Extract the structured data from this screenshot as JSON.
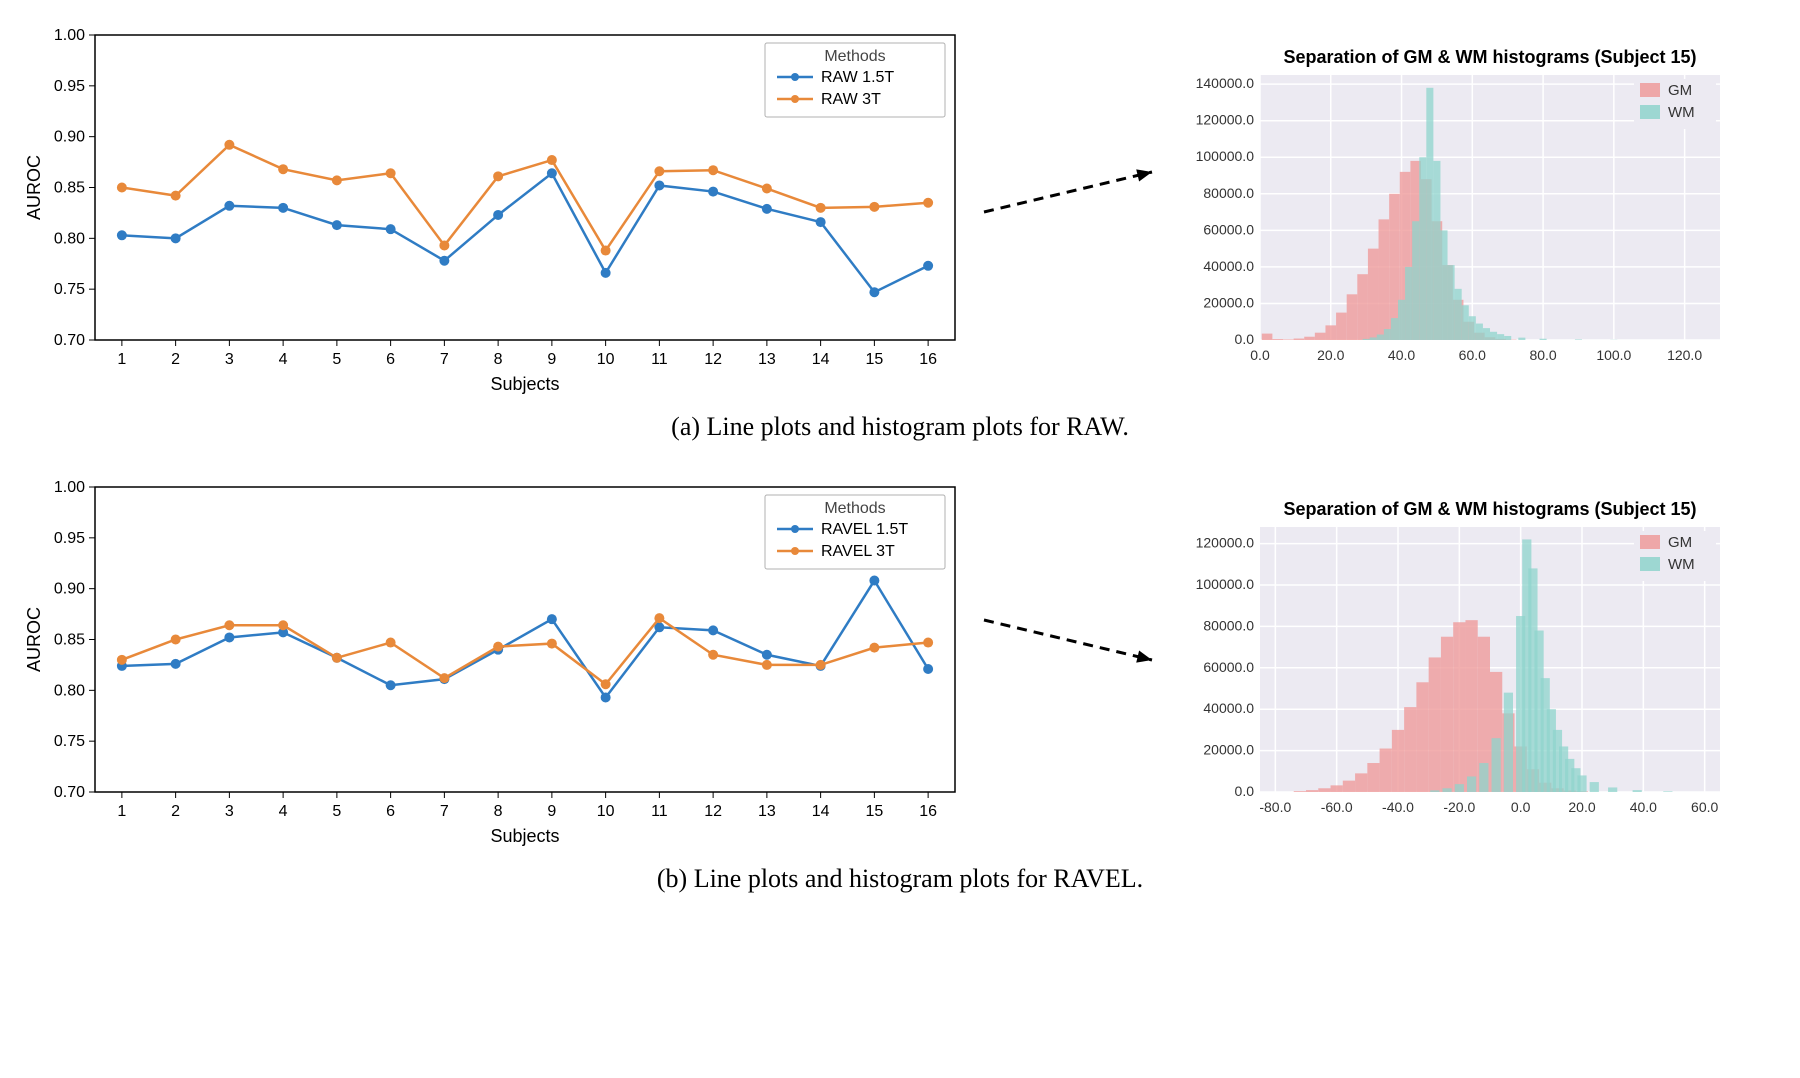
{
  "colors": {
    "series_blue": "#2f7cc4",
    "series_orange": "#e8893a",
    "gm_fill": "#ef9b9b",
    "wm_fill": "#8fd4cc",
    "hist_bg": "#eceaf2",
    "hist_grid": "#ffffff",
    "text": "#000000",
    "arrow": "#000000"
  },
  "panel_a": {
    "caption": "(a) Line plots and histogram plots for RAW.",
    "lineplot": {
      "type": "line",
      "xlabel": "Subjects",
      "ylabel": "AUROC",
      "xlim": [
        0.5,
        16.5
      ],
      "ylim": [
        0.7,
        1.0
      ],
      "xtick_step": 1,
      "ytick_step": 0.05,
      "legend_title": "Methods",
      "series": [
        {
          "name": "RAW 1.5T",
          "color": "#2f7cc4",
          "marker": "circle",
          "marker_size": 5,
          "line_width": 2.5,
          "values": [
            0.803,
            0.8,
            0.832,
            0.83,
            0.813,
            0.809,
            0.778,
            0.823,
            0.864,
            0.766,
            0.852,
            0.846,
            0.829,
            0.816,
            0.747,
            0.773
          ]
        },
        {
          "name": "RAW 3T",
          "color": "#e8893a",
          "marker": "circle",
          "marker_size": 5,
          "line_width": 2.5,
          "values": [
            0.85,
            0.842,
            0.892,
            0.868,
            0.857,
            0.864,
            0.793,
            0.861,
            0.877,
            0.788,
            0.866,
            0.867,
            0.849,
            0.83,
            0.831,
            0.835
          ]
        }
      ],
      "arrow_from_x": 15
    },
    "histogram": {
      "type": "histogram",
      "title": "Separation of GM & WM histograms (Subject 15)",
      "xlim": [
        0,
        130
      ],
      "ylim": [
        0,
        145000
      ],
      "xticks": [
        0.0,
        20.0,
        40.0,
        60.0,
        80.0,
        100.0,
        120.0
      ],
      "yticks": [
        0.0,
        20000.0,
        40000.0,
        60000.0,
        80000.0,
        100000.0,
        120000.0,
        140000.0
      ],
      "legend": [
        "GM",
        "WM"
      ],
      "gm": {
        "color": "#ef9b9b",
        "opacity": 0.8,
        "bin_centers": [
          2,
          5,
          8,
          11,
          14,
          17,
          20,
          23,
          26,
          29,
          32,
          35,
          38,
          41,
          44,
          47,
          50,
          53,
          56,
          59,
          62,
          65,
          68,
          71
        ],
        "bin_width": 3,
        "counts": [
          3500,
          500,
          300,
          800,
          1800,
          4000,
          8000,
          15000,
          25000,
          36000,
          50000,
          66000,
          80000,
          92000,
          98000,
          88000,
          65000,
          41000,
          22000,
          10000,
          4000,
          1500,
          600,
          200
        ]
      },
      "wm": {
        "color": "#8fd4cc",
        "opacity": 0.75,
        "bin_centers": [
          30,
          32,
          34,
          36,
          38,
          40,
          42,
          44,
          46,
          48,
          50,
          52,
          54,
          56,
          58,
          60,
          62,
          64,
          66,
          68,
          70,
          74,
          80,
          90,
          100
        ],
        "bin_width": 2,
        "counts": [
          600,
          1400,
          3000,
          6000,
          12000,
          22000,
          40000,
          65000,
          100000,
          138000,
          98000,
          60000,
          41000,
          28000,
          19000,
          13000,
          9000,
          6500,
          4500,
          3200,
          2200,
          1300,
          700,
          300,
          100
        ]
      }
    }
  },
  "panel_b": {
    "caption": "(b) Line plots and histogram plots for RAVEL.",
    "lineplot": {
      "type": "line",
      "xlabel": "Subjects",
      "ylabel": "AUROC",
      "xlim": [
        0.5,
        16.5
      ],
      "ylim": [
        0.7,
        1.0
      ],
      "xtick_step": 1,
      "ytick_step": 0.05,
      "legend_title": "Methods",
      "series": [
        {
          "name": "RAVEL 1.5T",
          "color": "#2f7cc4",
          "marker": "circle",
          "marker_size": 5,
          "line_width": 2.5,
          "values": [
            0.824,
            0.826,
            0.852,
            0.857,
            0.832,
            0.805,
            0.811,
            0.84,
            0.87,
            0.793,
            0.862,
            0.859,
            0.835,
            0.824,
            0.908,
            0.821
          ]
        },
        {
          "name": "RAVEL 3T",
          "color": "#e8893a",
          "marker": "circle",
          "marker_size": 5,
          "line_width": 2.5,
          "values": [
            0.83,
            0.85,
            0.864,
            0.864,
            0.832,
            0.847,
            0.812,
            0.843,
            0.846,
            0.806,
            0.871,
            0.835,
            0.825,
            0.825,
            0.842,
            0.847
          ]
        }
      ],
      "arrow_from_x": 15
    },
    "histogram": {
      "type": "histogram",
      "title": "Separation of GM & WM histograms (Subject 15)",
      "xlim": [
        -85,
        65
      ],
      "ylim": [
        0,
        128000
      ],
      "xticks": [
        -80.0,
        -60.0,
        -40.0,
        -20.0,
        0.0,
        20.0,
        40.0,
        60.0
      ],
      "yticks": [
        0.0,
        20000.0,
        40000.0,
        60000.0,
        80000.0,
        100000.0,
        120000.0
      ],
      "legend": [
        "GM",
        "WM"
      ],
      "gm": {
        "color": "#ef9b9b",
        "opacity": 0.8,
        "bin_centers": [
          -72,
          -68,
          -64,
          -60,
          -56,
          -52,
          -48,
          -44,
          -40,
          -36,
          -32,
          -28,
          -24,
          -20,
          -16,
          -12,
          -8,
          -4,
          0,
          4,
          8,
          12,
          16,
          20
        ],
        "bin_width": 4,
        "counts": [
          400,
          900,
          1800,
          3200,
          5500,
          9000,
          14000,
          21000,
          30000,
          41000,
          53000,
          65000,
          75000,
          82000,
          83000,
          75000,
          58000,
          38000,
          22000,
          11000,
          4500,
          1800,
          700,
          300
        ]
      },
      "wm": {
        "color": "#8fd4cc",
        "opacity": 0.75,
        "bin_centers": [
          -28,
          -24,
          -20,
          -16,
          -12,
          -8,
          -4,
          0,
          2,
          4,
          6,
          8,
          10,
          12,
          14,
          16,
          18,
          20,
          24,
          30,
          38,
          48
        ],
        "bin_width": 3,
        "counts": [
          800,
          1800,
          3800,
          7500,
          14000,
          26000,
          48000,
          85000,
          122000,
          108000,
          78000,
          55000,
          40000,
          30000,
          22000,
          16000,
          11500,
          8000,
          4800,
          2200,
          900,
          300
        ]
      }
    }
  }
}
